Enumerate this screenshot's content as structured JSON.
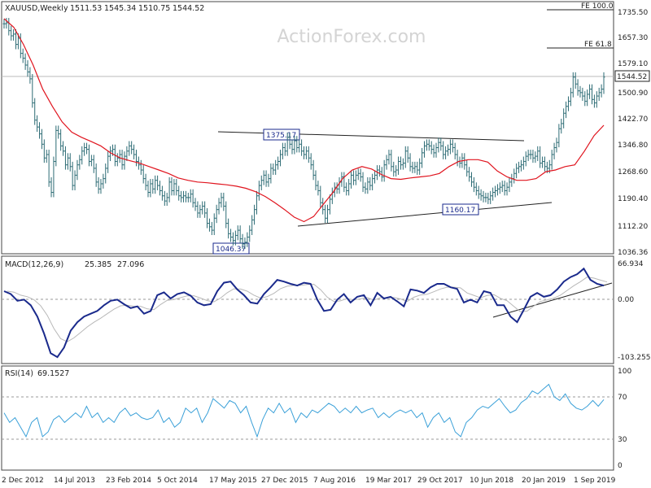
{
  "colors": {
    "price_bars": "#2c6b74",
    "ma_line": "#e0141e",
    "macd_line": "#1a2a8c",
    "signal_line": "#b8b8b8",
    "rsi_line": "#3aa0d8",
    "frame": "#444444",
    "grid_dash": "#9a9a9a",
    "watermark": "#d4d4d4",
    "trendline": "#222222"
  },
  "watermark": "ActionForex.com",
  "chart_data": [
    {
      "type": "ohlc",
      "title": "XAUUSD,Weekly",
      "ohlc_header": [
        "1511.53",
        "1545.34",
        "1510.75",
        "1544.52"
      ],
      "ylim": [
        1036.36,
        1735.98
      ],
      "y_tick_labels": [
        "1735.50",
        "1657.30",
        "1579.10",
        "1500.90",
        "1422.70",
        "1346.80",
        "1268.60",
        "1190.40",
        "1112.20",
        "1036.36"
      ],
      "last_price_label": "1544.52",
      "x_tick_labels": [
        "2 Dec 2012",
        "14 Jul 2013",
        "23 Feb 2014",
        "5 Oct 2014",
        "17 May 2015",
        "27 Dec 2015",
        "7 Aug 2016",
        "19 Mar 2017",
        "29 Oct 2017",
        "10 Jun 2018",
        "20 Jan 2019",
        "1 Sep 2019"
      ],
      "annotations": [
        {
          "label": "1375.17",
          "value": 1375.17
        },
        {
          "label": "1046.37",
          "value": 1046.37
        },
        {
          "label": "1160.17",
          "value": 1160.17
        }
      ],
      "fib_levels": [
        {
          "label": "FE 100.0",
          "value": 1735.5
        },
        {
          "label": "FE 61.8",
          "value": 1625
        }
      ],
      "trendlines": [
        {
          "name": "upper",
          "points": [
            [
              1382,
              1375
            ],
            [
              1360,
              1356
            ]
          ]
        },
        {
          "name": "lower",
          "points": [
            [
              1112,
              1112
            ],
            [
              1190,
              1185
            ]
          ]
        }
      ],
      "series": [
        {
          "kind": "close",
          "values": [
            1700,
            1703,
            1680,
            1665,
            1670,
            1640,
            1658,
            1614,
            1600,
            1580,
            1560,
            1540,
            1470,
            1420,
            1400,
            1380,
            1350,
            1310,
            1320,
            1240,
            1210,
            1300,
            1390,
            1380,
            1345,
            1330,
            1290,
            1310,
            1285,
            1230,
            1260,
            1290,
            1305,
            1330,
            1340,
            1335,
            1300,
            1305,
            1280,
            1240,
            1220,
            1235,
            1250,
            1280,
            1315,
            1330,
            1335,
            1300,
            1310,
            1320,
            1290,
            1315,
            1330,
            1345,
            1335,
            1320,
            1300,
            1290,
            1275,
            1250,
            1230,
            1210,
            1235,
            1220,
            1245,
            1230,
            1215,
            1200,
            1185,
            1195,
            1240,
            1215,
            1235,
            1215,
            1200,
            1195,
            1200,
            1195,
            1195,
            1205,
            1180,
            1170,
            1150,
            1160,
            1170,
            1150,
            1120,
            1110,
            1100,
            1135,
            1160,
            1180,
            1195,
            1170,
            1120,
            1090,
            1080,
            1070,
            1085,
            1100,
            1075,
            1060,
            1065,
            1080,
            1100,
            1130,
            1160,
            1200,
            1230,
            1245,
            1260,
            1240,
            1250,
            1280,
            1275,
            1290,
            1300,
            1320,
            1340,
            1330,
            1370,
            1350,
            1335,
            1360,
            1340,
            1350,
            1330,
            1320,
            1330,
            1310,
            1290,
            1260,
            1230,
            1215,
            1180,
            1160,
            1135,
            1160,
            1190,
            1210,
            1225,
            1220,
            1240,
            1255,
            1225,
            1215,
            1235,
            1260,
            1245,
            1260,
            1265,
            1255,
            1225,
            1220,
            1240,
            1230,
            1250,
            1260,
            1275,
            1270,
            1255,
            1290,
            1305,
            1320,
            1285,
            1270,
            1275,
            1300,
            1290,
            1295,
            1330,
            1310,
            1285,
            1280,
            1285,
            1275,
            1295,
            1325,
            1345,
            1350,
            1345,
            1335,
            1325,
            1340,
            1355,
            1345,
            1320,
            1330,
            1335,
            1350,
            1340,
            1320,
            1300,
            1295,
            1310,
            1290,
            1270,
            1255,
            1240,
            1225,
            1215,
            1205,
            1200,
            1195,
            1195,
            1190,
            1200,
            1210,
            1215,
            1220,
            1225,
            1230,
            1215,
            1225,
            1240,
            1250,
            1265,
            1280,
            1285,
            1290,
            1300,
            1315,
            1320,
            1320,
            1310,
            1315,
            1330,
            1295,
            1300,
            1285,
            1280,
            1290,
            1320,
            1340,
            1355,
            1395,
            1410,
            1440,
            1460,
            1475,
            1500,
            1545,
            1525,
            1505,
            1500,
            1490,
            1475,
            1495,
            1510,
            1480,
            1470,
            1490,
            1500,
            1510,
            1545
          ]
        },
        {
          "kind": "ma",
          "values": [
            1715,
            1690,
            1640,
            1580,
            1510,
            1460,
            1415,
            1385,
            1370,
            1358,
            1345,
            1325,
            1310,
            1302,
            1295,
            1285,
            1275,
            1265,
            1252,
            1245,
            1240,
            1238,
            1235,
            1232,
            1228,
            1222,
            1212,
            1198,
            1180,
            1160,
            1138,
            1125,
            1140,
            1175,
            1210,
            1250,
            1275,
            1285,
            1278,
            1262,
            1250,
            1248,
            1252,
            1255,
            1258,
            1265,
            1285,
            1300,
            1305,
            1305,
            1298,
            1272,
            1255,
            1245,
            1245,
            1250,
            1270,
            1275,
            1285,
            1290,
            1330,
            1375,
            1405
          ]
        },
        {
          "kind": "macd",
          "name": "MACD(12,26,9)",
          "header": [
            "25.385",
            "27.096"
          ],
          "ylim": [
            -103.255,
            66.934
          ],
          "y_tick_labels": [
            "66.934",
            "0.00",
            "-103.255"
          ],
          "values": [
            15,
            10,
            -2,
            0,
            -10,
            -30,
            -60,
            -95,
            -102,
            -85,
            -55,
            -40,
            -30,
            -25,
            -20,
            -10,
            -2,
            0,
            -8,
            -15,
            -12,
            -25,
            -20,
            8,
            13,
            2,
            10,
            13,
            7,
            -5,
            -10,
            -8,
            15,
            30,
            32,
            18,
            8,
            -5,
            -7,
            10,
            22,
            35,
            32,
            28,
            25,
            30,
            28,
            0,
            -20,
            -18,
            0,
            10,
            -5,
            5,
            8,
            -10,
            12,
            2,
            5,
            -3,
            -12,
            18,
            16,
            12,
            22,
            28,
            28,
            22,
            19,
            -5,
            0,
            -5,
            15,
            12,
            -10,
            -10,
            -30,
            -40,
            -18,
            5,
            12,
            5,
            8,
            18,
            32,
            40,
            45,
            55,
            35,
            28,
            25
          ]
        },
        {
          "kind": "rsi",
          "name": "RSI(14)",
          "header": [
            "69.1527"
          ],
          "ylim": [
            0,
            100
          ],
          "y_tick_labels": [
            "100",
            "70",
            "30",
            "0"
          ],
          "values": [
            55,
            45,
            50,
            40,
            30,
            45,
            50,
            30,
            35,
            48,
            52,
            45,
            50,
            55,
            50,
            62,
            50,
            55,
            45,
            50,
            45,
            55,
            60,
            52,
            55,
            50,
            48,
            50,
            58,
            45,
            50,
            40,
            45,
            60,
            55,
            60,
            45,
            55,
            70,
            65,
            60,
            68,
            65,
            55,
            62,
            45,
            30,
            48,
            60,
            55,
            65,
            55,
            60,
            45,
            55,
            50,
            58,
            55,
            60,
            65,
            62,
            55,
            60,
            55,
            62,
            55,
            58,
            60,
            50,
            55,
            50,
            55,
            58,
            55,
            58,
            50,
            55,
            40,
            50,
            55,
            45,
            50,
            35,
            30,
            45,
            50,
            58,
            62,
            60,
            65,
            70,
            62,
            55,
            58,
            66,
            70,
            78,
            75,
            80,
            85,
            72,
            68,
            75,
            65,
            60,
            58,
            62,
            68,
            62,
            69
          ]
        }
      ]
    }
  ]
}
